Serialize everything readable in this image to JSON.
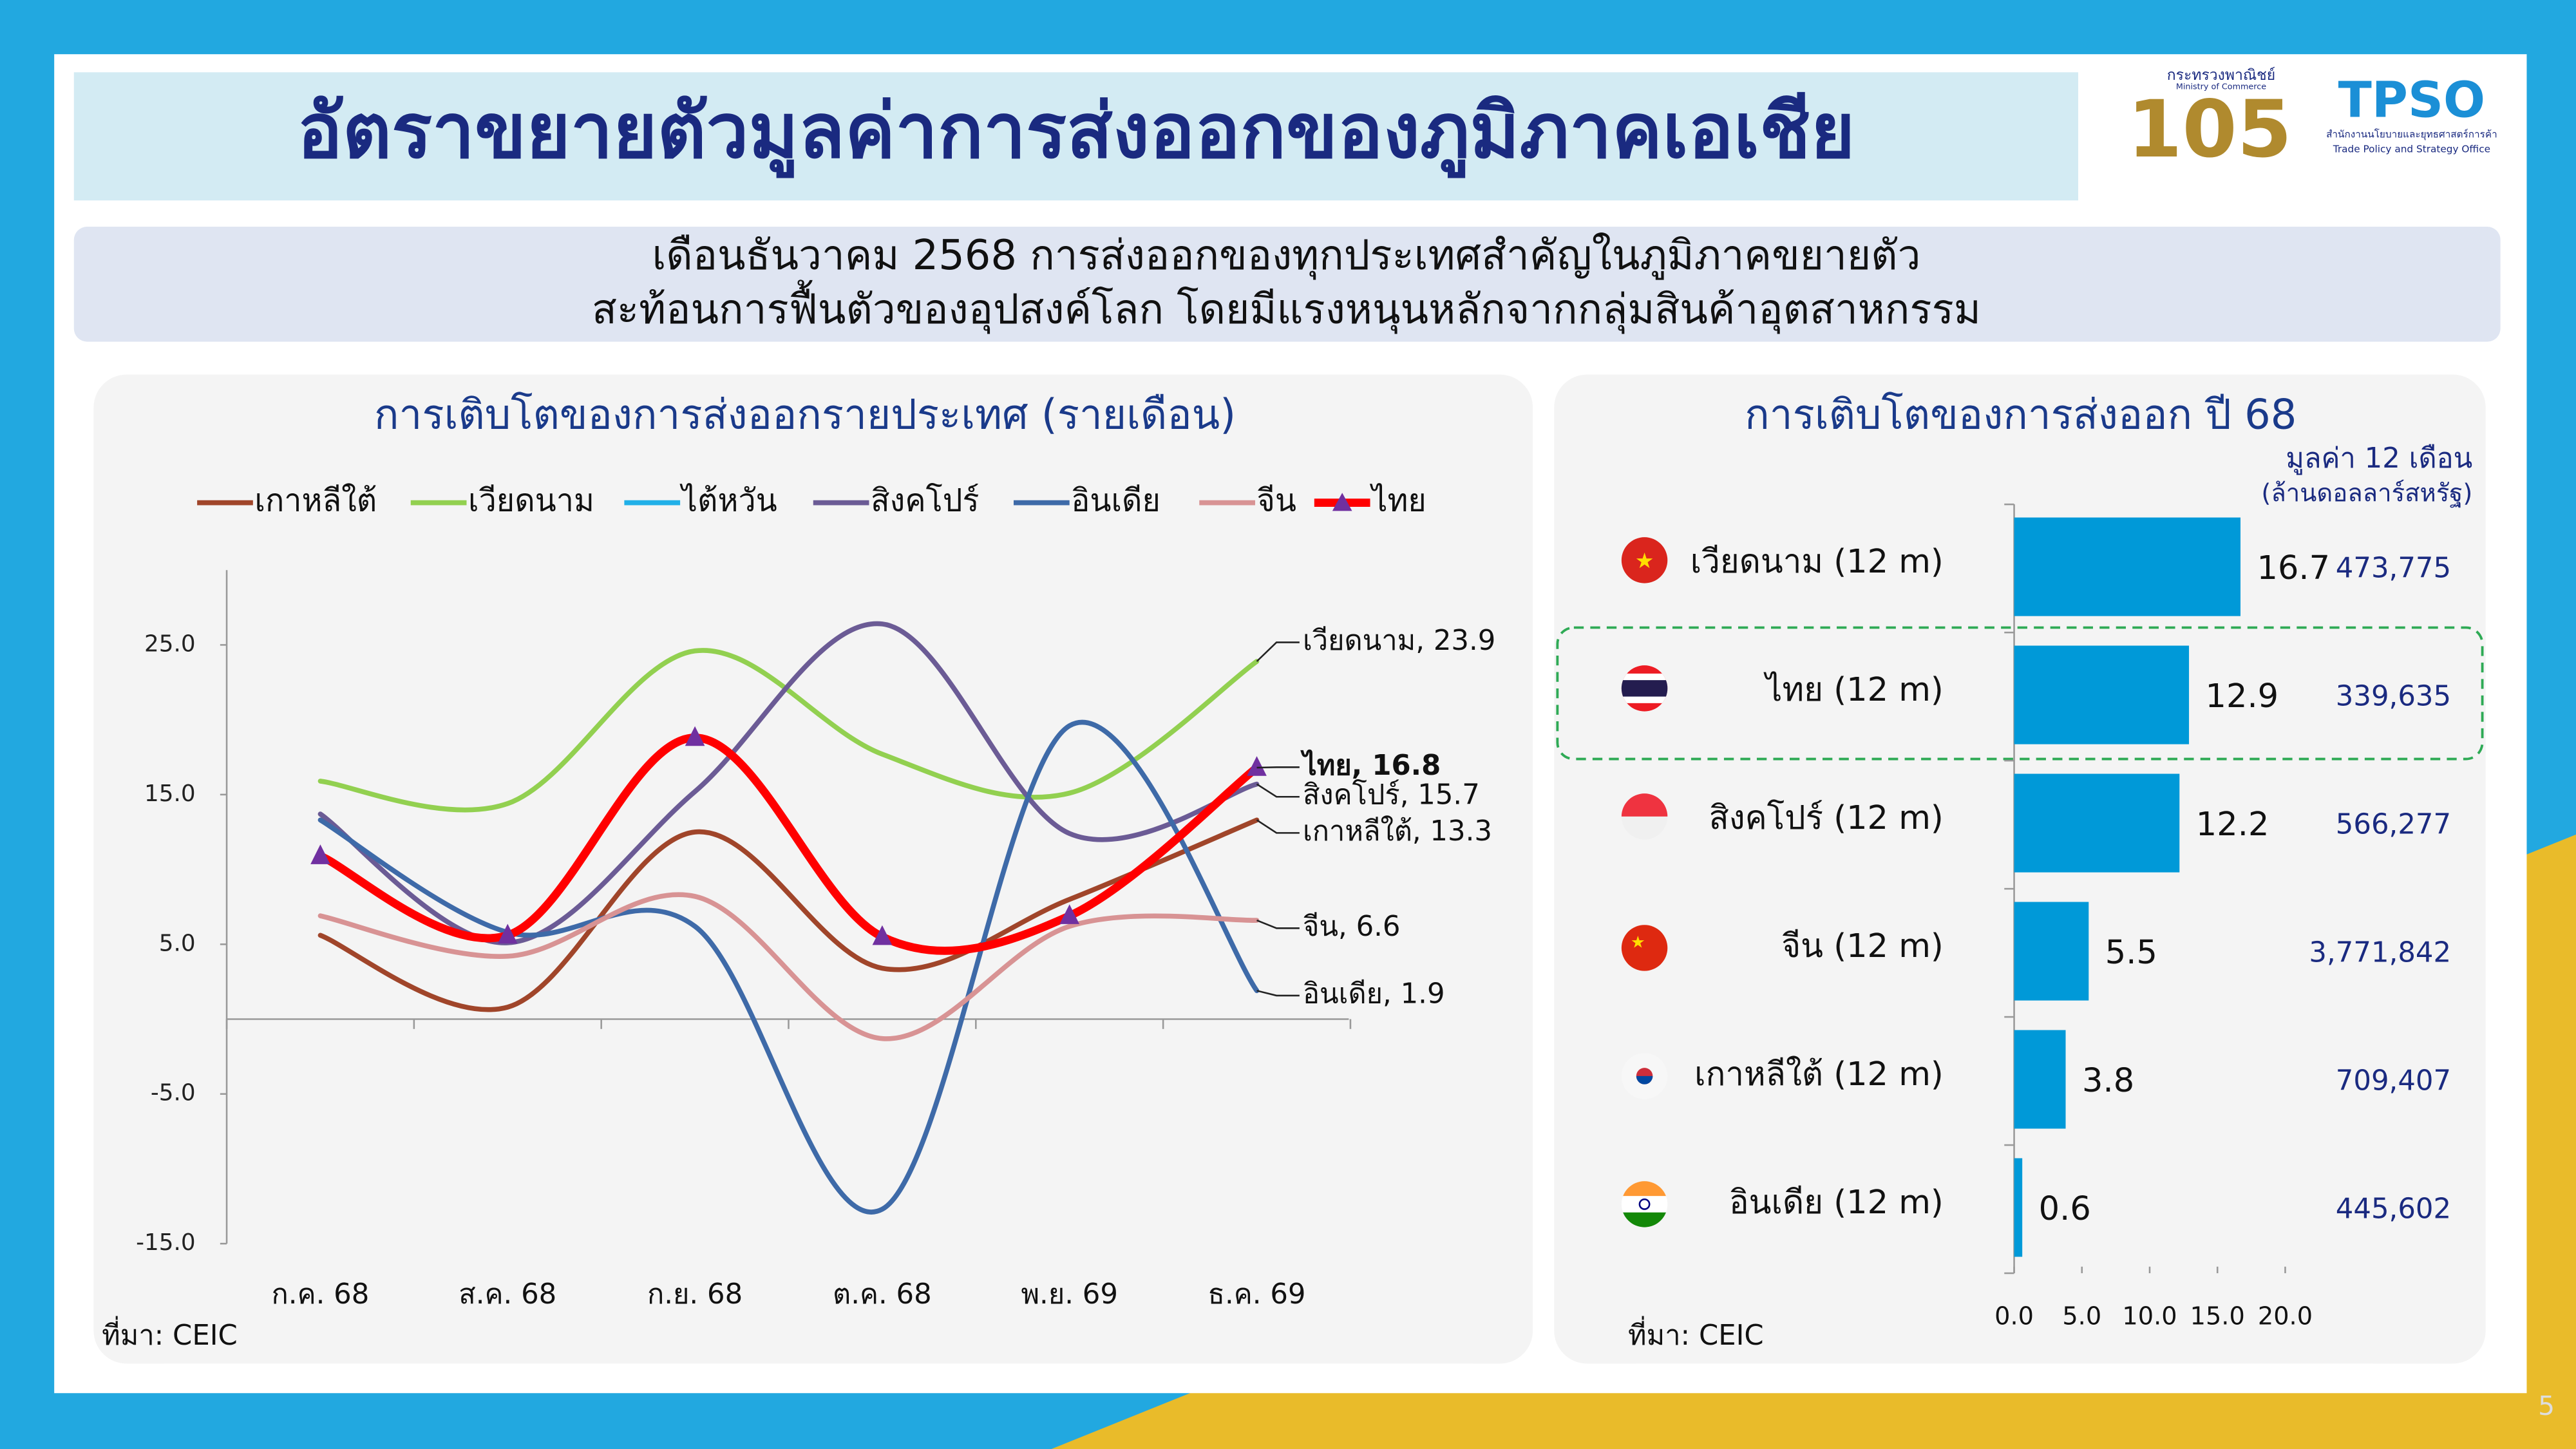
{
  "header": {
    "title": "อัตราขยายตัวมูลค่าการส่งออกของภูมิภาคเอเชีย",
    "subtitle_lines": [
      "เดือนธันวาคม 2568 การส่งออกของทุกประเทศสำคัญในภูมิภาคขยายตัว",
      "สะท้อนการฟื้นตัวของอุปสงค์โลก โดยมีแรงหนุนหลักจากกลุ่มสินค้าอุตสาหกรรม"
    ],
    "logo_ministry_th": "กระทรวงพาณิชย์",
    "logo_ministry_en": "Ministry of Commerce",
    "logo_anniversary": "105",
    "logo_tpso": "TPSO",
    "logo_tpso_th": "สำนักงานนโยบายและยุทธศาสตร์การค้า",
    "logo_tpso_en": "Trade Policy and Strategy Office"
  },
  "chart_data": [
    {
      "type": "line",
      "title": "การเติบโตของการส่งออกรายประเทศ (รายเดือน)",
      "source": "ที่มา: CEIC",
      "categories": [
        "ก.ค. 68",
        "ส.ค. 68",
        "ก.ย. 68",
        "ต.ค. 68",
        "พ.ย. 69",
        "ธ.ค. 69"
      ],
      "ylim": [
        -15,
        30
      ],
      "yticks": [
        {
          "value": 25,
          "label": "25.0"
        },
        {
          "value": 15,
          "label": "15.0"
        },
        {
          "value": 5,
          "label": "5.0"
        },
        {
          "value": -5,
          "label": "-5.0"
        },
        {
          "value": -15,
          "label": "-15.0"
        }
      ],
      "grid": false,
      "series": [
        {
          "name": "เกาหลีใต้",
          "color": "#a0452a",
          "values": [
            5.6,
            0.8,
            12.5,
            3.4,
            8.0,
            13.3
          ],
          "value_labels": [
            null,
            null,
            null,
            null,
            null,
            "เกาหลีใต้, 13.3"
          ]
        },
        {
          "name": "เวียดนาม",
          "color": "#92d050",
          "values": [
            15.9,
            14.4,
            24.6,
            17.7,
            15.1,
            23.9
          ],
          "value_labels": [
            null,
            null,
            null,
            null,
            null,
            "เวียดนาม, 23.9"
          ]
        },
        {
          "name": "ไต้หวัน",
          "color": "#21b0e8",
          "values": [
            null,
            null,
            null,
            null,
            null,
            null
          ]
        },
        {
          "name": "สิงคโปร์",
          "color": "#6b5b95",
          "values": [
            13.7,
            5.1,
            15.2,
            26.4,
            12.4,
            15.7
          ],
          "value_labels": [
            null,
            null,
            null,
            null,
            null,
            "สิงคโปร์, 15.7"
          ]
        },
        {
          "name": "อินเดีย",
          "color": "#3e6aa8",
          "values": [
            13.3,
            5.8,
            6.2,
            -12.7,
            19.6,
            1.9
          ],
          "value_labels": [
            null,
            null,
            null,
            null,
            null,
            "อินเดีย, 1.9"
          ]
        },
        {
          "name": "จีน",
          "color": "#d89394",
          "values": [
            6.9,
            4.2,
            8.2,
            -1.3,
            6.2,
            6.6
          ],
          "value_labels": [
            null,
            null,
            null,
            null,
            null,
            "จีน, 6.6"
          ]
        },
        {
          "name": "ไทย",
          "color": "#ff0000",
          "marker_color": "#7030a0",
          "values": [
            10.9,
            5.6,
            18.8,
            5.5,
            6.9,
            16.8
          ],
          "value_labels": [
            null,
            null,
            null,
            null,
            null,
            "ไทย, 16.8"
          ]
        }
      ]
    },
    {
      "type": "bar",
      "orientation": "horizontal",
      "title": "การเติบโตของการส่งออก ปี 68",
      "source": "ที่มา: CEIC",
      "color": "#0099d8",
      "categories": [
        "เวียดนาม (12 m)",
        "ไทย (12 m)",
        "สิงคโปร์ (12 m)",
        "จีน (12 m)",
        "เกาหลีใต้ (12 m)",
        "อินเดีย (12 m)"
      ],
      "values": [
        16.7,
        12.9,
        12.2,
        5.5,
        3.8,
        0.6
      ],
      "xlim": [
        0,
        20
      ],
      "xticks": [
        {
          "value": 0,
          "label": "0.0"
        },
        {
          "value": 5,
          "label": "5.0"
        },
        {
          "value": 10,
          "label": "10.0"
        },
        {
          "value": 15,
          "label": "15.0"
        },
        {
          "value": 20,
          "label": "20.0"
        }
      ],
      "annual_values": {
        "title": "มูลค่า 12 เดือน",
        "unit": "(ล้านดอลลาร์สหรัฐ)",
        "labels": [
          "473,775",
          "339,635",
          "566,277",
          "3,771,842",
          "709,407",
          "445,602"
        ]
      }
    }
  ],
  "page_number": 5
}
